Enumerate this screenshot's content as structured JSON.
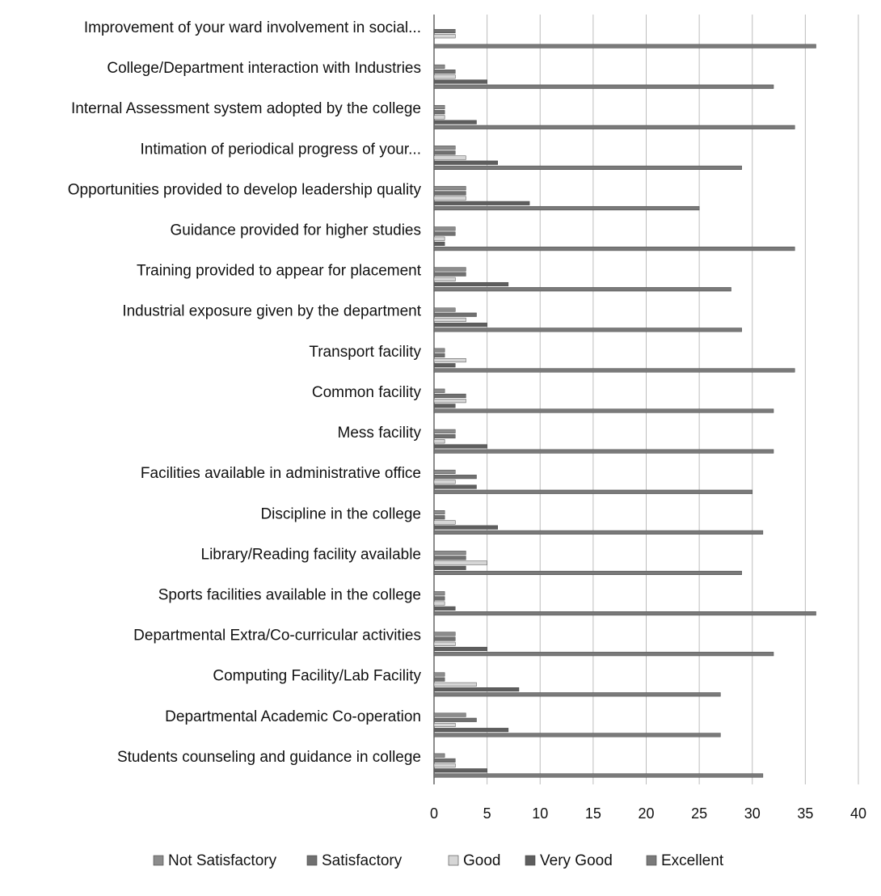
{
  "chart_data": {
    "type": "bar",
    "orientation": "horizontal",
    "title": "",
    "xlabel": "",
    "ylabel": "",
    "xlim": [
      0,
      40
    ],
    "xticks": [
      0,
      5,
      10,
      15,
      20,
      25,
      30,
      35,
      40
    ],
    "grid": "vertical",
    "legend_position": "bottom",
    "categories": [
      "Improvement of your ward involvement in social...",
      "College/Department interaction with Industries",
      "Internal Assessment system adopted by the college",
      "Intimation of periodical progress of your...",
      "Opportunities provided to develop leadership quality",
      "Guidance provided for higher studies",
      "Training provided to appear for placement",
      "Industrial exposure given by the department",
      "Transport facility",
      "Common facility",
      "Mess facility",
      "Facilities available in administrative office",
      "Discipline in the college",
      "Library/Reading facility available",
      "Sports facilities available in the college",
      "Departmental Extra/Co-curricular activities",
      "Computing Facility/Lab Facility",
      "Departmental Academic Co-operation",
      "Students counseling and guidance in college"
    ],
    "series": [
      {
        "name": "Not Satisfactory",
        "color": "#8c8c8c",
        "values": [
          0,
          1,
          1,
          2,
          3,
          2,
          3,
          2,
          1,
          1,
          2,
          2,
          1,
          3,
          1,
          2,
          1,
          3,
          1
        ]
      },
      {
        "name": "Satisfactory",
        "color": "#707070",
        "values": [
          2,
          2,
          1,
          2,
          3,
          2,
          3,
          4,
          1,
          3,
          2,
          4,
          1,
          3,
          1,
          2,
          1,
          4,
          2
        ]
      },
      {
        "name": "Good",
        "color": "#d6d6d6",
        "values": [
          2,
          2,
          1,
          3,
          3,
          1,
          2,
          3,
          3,
          3,
          1,
          2,
          2,
          5,
          1,
          2,
          4,
          2,
          2
        ]
      },
      {
        "name": "Very Good",
        "color": "#5e5e5e",
        "values": [
          0,
          5,
          4,
          6,
          9,
          1,
          7,
          5,
          2,
          2,
          5,
          4,
          6,
          3,
          2,
          5,
          8,
          7,
          5
        ]
      },
      {
        "name": "Excellent",
        "color": "#7a7a7a",
        "values": [
          36,
          32,
          34,
          29,
          25,
          34,
          28,
          29,
          34,
          32,
          32,
          30,
          31,
          29,
          36,
          32,
          27,
          27,
          31
        ]
      }
    ]
  }
}
